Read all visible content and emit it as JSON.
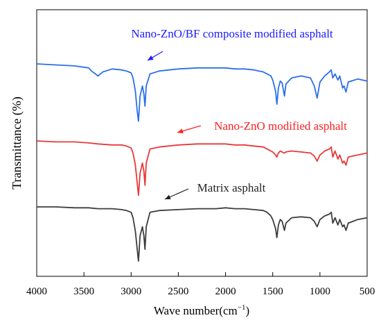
{
  "chart_data": {
    "type": "line",
    "title": "",
    "xlabel": "Wave number(cm",
    "xlabel_sup": "−1",
    "xlabel_close": ")",
    "ylabel": "Transmittance (%)",
    "xlim": [
      4000,
      500
    ],
    "x_reversed": true,
    "y_ticks_shown": false,
    "grid": false,
    "legend": "none",
    "xticks": [
      4000,
      3500,
      3000,
      2500,
      2000,
      1500,
      1000,
      500
    ],
    "xtick_labels": [
      "4000",
      "3500",
      "3000",
      "2500",
      "2000",
      "1500",
      "1000",
      "500"
    ],
    "annotations": [
      {
        "text": "Nano-ZnO/BF composite modified asphalt",
        "color": "#1a1aff",
        "series": 0
      },
      {
        "text": "Nano-ZnO  modified asphalt",
        "color": "#ff2020",
        "series": 1
      },
      {
        "text": "Matrix asphalt",
        "color": "#222222",
        "series": 2
      }
    ],
    "y_unit_note": "relative transmittance, arbitrary offset (0 = baseline of each trace)",
    "series": [
      {
        "color": "#2a6fe8",
        "offset": 70,
        "x": [
          4000,
          3800,
          3600,
          3450,
          3420,
          3350,
          3300,
          3200,
          3100,
          3050,
          3000,
          2980,
          2955,
          2935,
          2922,
          2905,
          2880,
          2865,
          2853,
          2840,
          2800,
          2700,
          2500,
          2300,
          2100,
          2000,
          1900,
          1800,
          1700,
          1600,
          1560,
          1520,
          1500,
          1470,
          1456,
          1440,
          1420,
          1400,
          1376,
          1360,
          1300,
          1200,
          1100,
          1060,
          1030,
          1000,
          950,
          900,
          880,
          864,
          840,
          810,
          790,
          760,
          745,
          724,
          700,
          600,
          500
        ],
        "y": [
          52,
          51,
          50,
          48,
          45,
          40,
          44,
          47,
          46,
          45,
          43,
          38,
          25,
          5,
          -5,
          20,
          30,
          22,
          10,
          30,
          42,
          45,
          47,
          48,
          48,
          48,
          47,
          47,
          46,
          44,
          42,
          40,
          36,
          25,
          12,
          28,
          35,
          33,
          20,
          32,
          38,
          40,
          38,
          30,
          18,
          34,
          40,
          44,
          46,
          38,
          42,
          36,
          40,
          28,
          30,
          24,
          34,
          37,
          35
        ]
      },
      {
        "color": "#e83838",
        "offset": 44,
        "x": [
          4000,
          3800,
          3600,
          3450,
          3350,
          3200,
          3100,
          3050,
          3000,
          2980,
          2955,
          2935,
          2922,
          2905,
          2880,
          2865,
          2853,
          2840,
          2800,
          2700,
          2500,
          2300,
          2100,
          2000,
          1900,
          1800,
          1700,
          1600,
          1560,
          1520,
          1500,
          1470,
          1456,
          1440,
          1420,
          1400,
          1376,
          1360,
          1300,
          1200,
          1100,
          1060,
          1030,
          1000,
          950,
          900,
          880,
          864,
          840,
          810,
          790,
          760,
          745,
          724,
          700,
          600,
          500
        ],
        "y": [
          52,
          51,
          51,
          50,
          49,
          48,
          48,
          47,
          45,
          40,
          28,
          10,
          -2,
          20,
          30,
          22,
          8,
          30,
          44,
          46,
          48,
          49,
          49,
          49,
          48,
          48,
          47,
          46,
          44,
          42,
          41,
          38,
          36,
          40,
          42,
          41,
          40,
          41,
          42,
          41,
          40,
          37,
          32,
          38,
          42,
          44,
          46,
          36,
          42,
          34,
          38,
          30,
          32,
          28,
          36,
          38,
          40
        ]
      },
      {
        "color": "#3c3c3c",
        "offset": 18,
        "x": [
          4000,
          3800,
          3600,
          3450,
          3350,
          3200,
          3100,
          3050,
          3000,
          2980,
          2955,
          2935,
          2922,
          2905,
          2880,
          2865,
          2853,
          2840,
          2800,
          2700,
          2500,
          2300,
          2100,
          2000,
          1900,
          1800,
          1700,
          1600,
          1560,
          1520,
          1500,
          1470,
          1456,
          1440,
          1420,
          1400,
          1376,
          1360,
          1300,
          1200,
          1100,
          1060,
          1030,
          1000,
          950,
          900,
          880,
          864,
          840,
          810,
          790,
          760,
          745,
          724,
          700,
          600,
          500
        ],
        "y": [
          52,
          52,
          51,
          51,
          50,
          50,
          49,
          48,
          46,
          40,
          25,
          5,
          -8,
          20,
          30,
          20,
          5,
          30,
          46,
          48,
          49,
          50,
          50,
          51,
          50,
          50,
          49,
          48,
          46,
          42,
          38,
          28,
          18,
          32,
          38,
          36,
          26,
          34,
          40,
          41,
          40,
          36,
          30,
          38,
          42,
          44,
          46,
          34,
          40,
          32,
          38,
          30,
          32,
          26,
          34,
          38,
          40
        ]
      }
    ]
  }
}
